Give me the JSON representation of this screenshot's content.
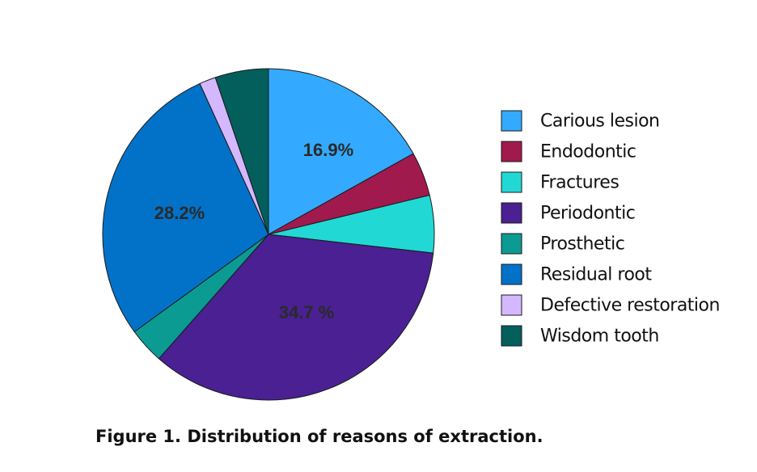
{
  "chart_data": {
    "type": "pie",
    "title": "",
    "categories": [
      "Carious lesion",
      "Endodontic",
      "Fractures",
      "Periodontic",
      "Prosthetic",
      "Residual root",
      "Defective restoration",
      "Wisdom tooth"
    ],
    "values": [
      16.9,
      4.3,
      5.6,
      34.7,
      3.5,
      28.2,
      1.6,
      5.2
    ],
    "colors": [
      "#33aaff",
      "#a01a4e",
      "#22d8d4",
      "#4a2092",
      "#0b9b93",
      "#0272c8",
      "#d4b8ff",
      "#035f5c"
    ],
    "data_labels": [
      "16.9%",
      "",
      "",
      "34.7 %",
      "",
      "28.2%",
      "",
      ""
    ],
    "legend_position": "right",
    "start_angle": "12 o'clock",
    "direction": "clockwise"
  },
  "caption": "Figure 1. Distribution of reasons of extraction."
}
